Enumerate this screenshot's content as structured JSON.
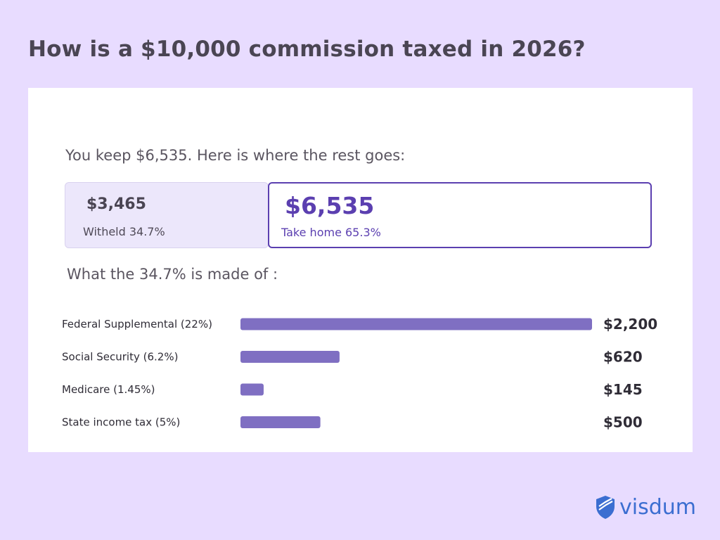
{
  "title": "How is a $10,000 commission taxed in 2026?",
  "intro": "You keep $6,535. Here is where the rest goes:",
  "split": {
    "withheld_amount": "$3,465",
    "withheld_label": "Witheld 34.7%",
    "take_home_amount": "$6,535",
    "take_home_label": "Take home 65.3%"
  },
  "breakdown_heading": "What the 34.7% is made of :",
  "chart_data": {
    "type": "bar",
    "orientation": "horizontal",
    "categories": [
      "Federal Supplemental (22%)",
      "Social Security (6.2%)",
      "Medicare (1.45%)",
      "State income tax (5%)"
    ],
    "values": [
      2200,
      620,
      145,
      500
    ],
    "value_labels": [
      "$2,200",
      "$620",
      "$145",
      "$500"
    ],
    "bar_color": "#7f6fc2"
  },
  "brand": {
    "name": "visdum",
    "color": "#3b6ed1"
  },
  "colors": {
    "background": "#e8dcff",
    "accent": "#5b3fb0"
  }
}
